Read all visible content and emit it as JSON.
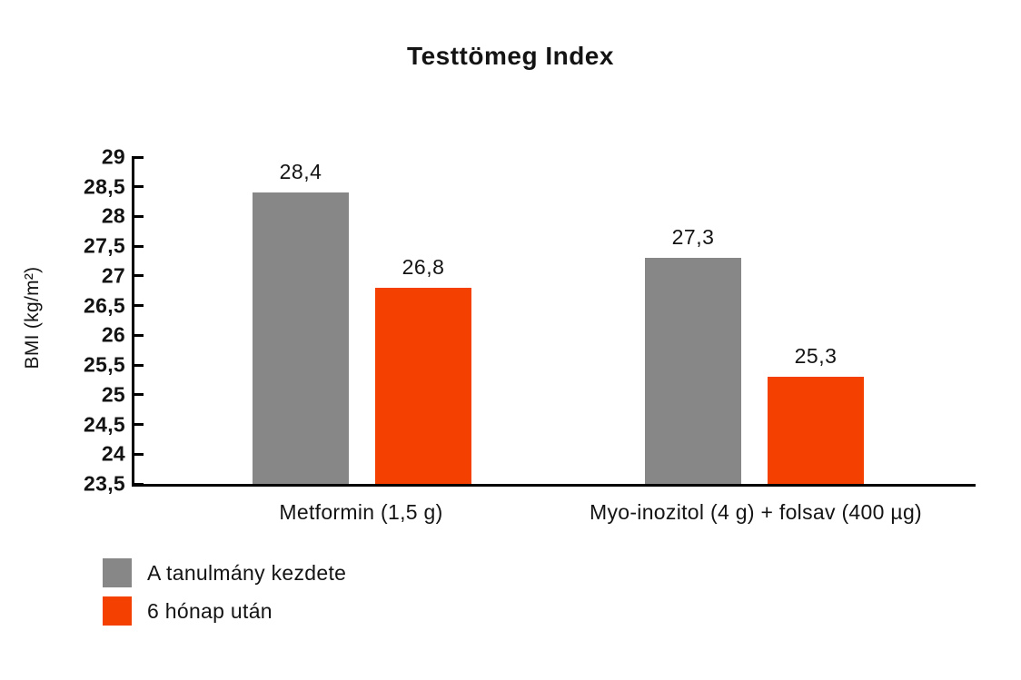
{
  "chart_data": {
    "type": "bar",
    "title": "Testtömeg Index",
    "ylabel": "BMI (kg/m²)",
    "xlabel": "",
    "categories": [
      "Metformin (1,5 g)",
      "Myo-inozitol (4 g) + folsav (400 µg)"
    ],
    "series": [
      {
        "name": "A tanulmány kezdete",
        "color": "#878787",
        "values": [
          28.4,
          27.3
        ],
        "labels": [
          "28,4",
          "27,3"
        ]
      },
      {
        "name": "6 hónap után",
        "color": "#f44000",
        "values": [
          26.8,
          25.3
        ],
        "labels": [
          "26,8",
          "25,3"
        ]
      }
    ],
    "ylim": [
      23.5,
      29
    ],
    "ytick_step": 0.5,
    "ytick_values": [
      29,
      28.5,
      28,
      27.5,
      27,
      26.5,
      26,
      25.5,
      25,
      24.5,
      24,
      23.5
    ],
    "ytick_labels": [
      "29",
      "28,5",
      "28",
      "27,5",
      "27",
      "26,5",
      "26",
      "25,5",
      "25",
      "24,5",
      "24",
      "23,5"
    ],
    "grid": false,
    "legend_position": "bottom-left",
    "colors": {
      "axis": "#000000",
      "text": "#141414",
      "background": "#ffffff"
    }
  }
}
